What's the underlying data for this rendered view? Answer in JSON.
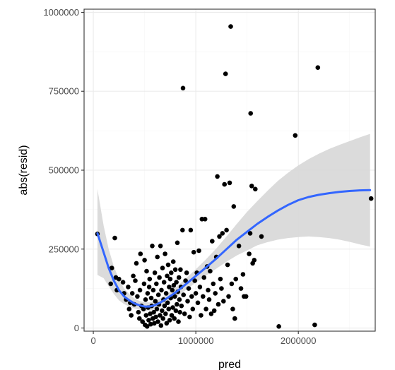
{
  "chart_data": {
    "type": "scatter",
    "title": "",
    "xlabel": "pred",
    "ylabel": "abs(resid)",
    "xlim": [
      -90000,
      2750000
    ],
    "ylim": [
      -10000,
      1010000
    ],
    "x_ticks": [
      0,
      1000000,
      2000000
    ],
    "x_tick_labels": [
      "0",
      "1000000",
      "2000000"
    ],
    "y_ticks": [
      0,
      250000,
      500000,
      750000,
      1000000
    ],
    "y_tick_labels": [
      "0",
      "250000",
      "500000",
      "750000",
      "1000000"
    ],
    "grid": true,
    "theme": "black-and-white",
    "colors": {
      "points": "#000000",
      "smooth_line": "#3366ff",
      "confidence_band": "#d9d9d9",
      "grid_major": "#ebebeb",
      "grid_minor": "#f5f5f5",
      "panel_border": "#333333"
    },
    "points": [
      [
        40000,
        298000
      ],
      [
        180000,
        190000
      ],
      [
        210000,
        285000
      ],
      [
        170000,
        140000
      ],
      [
        220000,
        160000
      ],
      [
        250000,
        155000
      ],
      [
        230000,
        120000
      ],
      [
        290000,
        145000
      ],
      [
        300000,
        110000
      ],
      [
        320000,
        90000
      ],
      [
        340000,
        130000
      ],
      [
        350000,
        60000
      ],
      [
        360000,
        80000
      ],
      [
        370000,
        40000
      ],
      [
        380000,
        110000
      ],
      [
        390000,
        165000
      ],
      [
        400000,
        75000
      ],
      [
        410000,
        150000
      ],
      [
        420000,
        205000
      ],
      [
        430000,
        100000
      ],
      [
        440000,
        50000
      ],
      [
        450000,
        30000
      ],
      [
        455000,
        120000
      ],
      [
        460000,
        235000
      ],
      [
        470000,
        70000
      ],
      [
        480000,
        20000
      ],
      [
        490000,
        60000
      ],
      [
        495000,
        140000
      ],
      [
        500000,
        215000
      ],
      [
        505000,
        10000
      ],
      [
        510000,
        90000
      ],
      [
        515000,
        40000
      ],
      [
        520000,
        180000
      ],
      [
        525000,
        5000
      ],
      [
        530000,
        110000
      ],
      [
        535000,
        65000
      ],
      [
        540000,
        25000
      ],
      [
        545000,
        130000
      ],
      [
        550000,
        155000
      ],
      [
        555000,
        45000
      ],
      [
        560000,
        12000
      ],
      [
        565000,
        95000
      ],
      [
        570000,
        70000
      ],
      [
        575000,
        260000
      ],
      [
        580000,
        30000
      ],
      [
        585000,
        120000
      ],
      [
        590000,
        50000
      ],
      [
        595000,
        15000
      ],
      [
        600000,
        175000
      ],
      [
        605000,
        85000
      ],
      [
        610000,
        35000
      ],
      [
        615000,
        140000
      ],
      [
        620000,
        60000
      ],
      [
        625000,
        225000
      ],
      [
        630000,
        20000
      ],
      [
        635000,
        105000
      ],
      [
        640000,
        75000
      ],
      [
        645000,
        160000
      ],
      [
        650000,
        40000
      ],
      [
        655000,
        260000
      ],
      [
        660000,
        8000
      ],
      [
        665000,
        120000
      ],
      [
        670000,
        55000
      ],
      [
        675000,
        190000
      ],
      [
        680000,
        30000
      ],
      [
        685000,
        90000
      ],
      [
        690000,
        145000
      ],
      [
        695000,
        70000
      ],
      [
        700000,
        235000
      ],
      [
        705000,
        45000
      ],
      [
        710000,
        110000
      ],
      [
        715000,
        15000
      ],
      [
        720000,
        165000
      ],
      [
        725000,
        80000
      ],
      [
        730000,
        200000
      ],
      [
        735000,
        60000
      ],
      [
        740000,
        130000
      ],
      [
        745000,
        25000
      ],
      [
        750000,
        155000
      ],
      [
        755000,
        95000
      ],
      [
        760000,
        175000
      ],
      [
        765000,
        40000
      ],
      [
        770000,
        120000
      ],
      [
        775000,
        65000
      ],
      [
        780000,
        210000
      ],
      [
        785000,
        135000
      ],
      [
        790000,
        30000
      ],
      [
        795000,
        100000
      ],
      [
        800000,
        185000
      ],
      [
        805000,
        55000
      ],
      [
        810000,
        145000
      ],
      [
        815000,
        75000
      ],
      [
        820000,
        270000
      ],
      [
        825000,
        115000
      ],
      [
        830000,
        20000
      ],
      [
        835000,
        160000
      ],
      [
        840000,
        90000
      ],
      [
        845000,
        50000
      ],
      [
        850000,
        185000
      ],
      [
        855000,
        130000
      ],
      [
        860000,
        70000
      ],
      [
        870000,
        310000
      ],
      [
        875000,
        760000
      ],
      [
        880000,
        105000
      ],
      [
        890000,
        45000
      ],
      [
        900000,
        150000
      ],
      [
        910000,
        175000
      ],
      [
        920000,
        85000
      ],
      [
        930000,
        125000
      ],
      [
        940000,
        35000
      ],
      [
        950000,
        310000
      ],
      [
        960000,
        100000
      ],
      [
        970000,
        60000
      ],
      [
        980000,
        240000
      ],
      [
        990000,
        150000
      ],
      [
        1000000,
        110000
      ],
      [
        1010000,
        175000
      ],
      [
        1020000,
        80000
      ],
      [
        1030000,
        245000
      ],
      [
        1040000,
        130000
      ],
      [
        1050000,
        40000
      ],
      [
        1060000,
        345000
      ],
      [
        1070000,
        100000
      ],
      [
        1080000,
        160000
      ],
      [
        1090000,
        345000
      ],
      [
        1100000,
        60000
      ],
      [
        1110000,
        195000
      ],
      [
        1120000,
        120000
      ],
      [
        1130000,
        90000
      ],
      [
        1140000,
        180000
      ],
      [
        1150000,
        45000
      ],
      [
        1160000,
        275000
      ],
      [
        1170000,
        140000
      ],
      [
        1180000,
        55000
      ],
      [
        1190000,
        110000
      ],
      [
        1200000,
        225000
      ],
      [
        1210000,
        480000
      ],
      [
        1220000,
        75000
      ],
      [
        1230000,
        290000
      ],
      [
        1240000,
        155000
      ],
      [
        1250000,
        125000
      ],
      [
        1260000,
        300000
      ],
      [
        1270000,
        85000
      ],
      [
        1280000,
        455000
      ],
      [
        1290000,
        805000
      ],
      [
        1300000,
        310000
      ],
      [
        1310000,
        200000
      ],
      [
        1320000,
        100000
      ],
      [
        1330000,
        460000
      ],
      [
        1340000,
        955000
      ],
      [
        1350000,
        140000
      ],
      [
        1360000,
        60000
      ],
      [
        1370000,
        385000
      ],
      [
        1380000,
        30000
      ],
      [
        1390000,
        155000
      ],
      [
        1420000,
        260000
      ],
      [
        1440000,
        125000
      ],
      [
        1460000,
        170000
      ],
      [
        1470000,
        100000
      ],
      [
        1490000,
        100000
      ],
      [
        1520000,
        235000
      ],
      [
        1530000,
        300000
      ],
      [
        1535000,
        680000
      ],
      [
        1545000,
        450000
      ],
      [
        1555000,
        205000
      ],
      [
        1570000,
        215000
      ],
      [
        1580000,
        440000
      ],
      [
        1640000,
        290000
      ],
      [
        1810000,
        5000
      ],
      [
        1970000,
        610000
      ],
      [
        2160000,
        10000
      ],
      [
        2190000,
        825000
      ],
      [
        2710000,
        410000
      ]
    ],
    "smooth_line": [
      [
        40000,
        300000
      ],
      [
        100000,
        240000
      ],
      [
        150000,
        190000
      ],
      [
        200000,
        150000
      ],
      [
        250000,
        120000
      ],
      [
        300000,
        100000
      ],
      [
        350000,
        88000
      ],
      [
        400000,
        78000
      ],
      [
        450000,
        72000
      ],
      [
        500000,
        68000
      ],
      [
        550000,
        68000
      ],
      [
        600000,
        72000
      ],
      [
        650000,
        80000
      ],
      [
        700000,
        90000
      ],
      [
        800000,
        112000
      ],
      [
        900000,
        138000
      ],
      [
        1000000,
        165000
      ],
      [
        1100000,
        192000
      ],
      [
        1200000,
        220000
      ],
      [
        1300000,
        250000
      ],
      [
        1400000,
        280000
      ],
      [
        1500000,
        305000
      ],
      [
        1600000,
        330000
      ],
      [
        1700000,
        352000
      ],
      [
        1800000,
        372000
      ],
      [
        1900000,
        390000
      ],
      [
        2000000,
        405000
      ],
      [
        2100000,
        415000
      ],
      [
        2200000,
        422000
      ],
      [
        2300000,
        427000
      ],
      [
        2400000,
        431000
      ],
      [
        2500000,
        434000
      ],
      [
        2600000,
        436000
      ],
      [
        2700000,
        437000
      ]
    ],
    "band_upper": [
      [
        40000,
        440000
      ],
      [
        100000,
        325000
      ],
      [
        150000,
        250000
      ],
      [
        200000,
        195000
      ],
      [
        250000,
        155000
      ],
      [
        300000,
        125000
      ],
      [
        350000,
        108000
      ],
      [
        400000,
        94000
      ],
      [
        450000,
        86000
      ],
      [
        500000,
        81000
      ],
      [
        550000,
        81000
      ],
      [
        600000,
        85000
      ],
      [
        650000,
        94000
      ],
      [
        700000,
        105000
      ],
      [
        800000,
        128000
      ],
      [
        900000,
        156000
      ],
      [
        1000000,
        186000
      ],
      [
        1100000,
        218000
      ],
      [
        1200000,
        252000
      ],
      [
        1300000,
        290000
      ],
      [
        1400000,
        330000
      ],
      [
        1500000,
        368000
      ],
      [
        1600000,
        402000
      ],
      [
        1700000,
        435000
      ],
      [
        1800000,
        466000
      ],
      [
        1900000,
        492000
      ],
      [
        2000000,
        515000
      ],
      [
        2100000,
        535000
      ],
      [
        2200000,
        552000
      ],
      [
        2300000,
        567000
      ],
      [
        2400000,
        580000
      ],
      [
        2500000,
        592000
      ],
      [
        2600000,
        604000
      ],
      [
        2700000,
        615000
      ]
    ],
    "band_lower": [
      [
        40000,
        168000
      ],
      [
        100000,
        158000
      ],
      [
        150000,
        132000
      ],
      [
        200000,
        108000
      ],
      [
        250000,
        88000
      ],
      [
        300000,
        76000
      ],
      [
        350000,
        68000
      ],
      [
        400000,
        62000
      ],
      [
        450000,
        58000
      ],
      [
        500000,
        55000
      ],
      [
        550000,
        55000
      ],
      [
        600000,
        59000
      ],
      [
        650000,
        66000
      ],
      [
        700000,
        75000
      ],
      [
        800000,
        96000
      ],
      [
        900000,
        120000
      ],
      [
        1000000,
        144000
      ],
      [
        1100000,
        166000
      ],
      [
        1200000,
        188000
      ],
      [
        1300000,
        210000
      ],
      [
        1400000,
        230000
      ],
      [
        1500000,
        246000
      ],
      [
        1600000,
        262000
      ],
      [
        1700000,
        272000
      ],
      [
        1800000,
        280000
      ],
      [
        1900000,
        285000
      ],
      [
        2000000,
        288000
      ],
      [
        2100000,
        290000
      ],
      [
        2200000,
        288000
      ],
      [
        2300000,
        285000
      ],
      [
        2400000,
        280000
      ],
      [
        2500000,
        273000
      ],
      [
        2600000,
        265000
      ],
      [
        2700000,
        258000
      ]
    ]
  }
}
